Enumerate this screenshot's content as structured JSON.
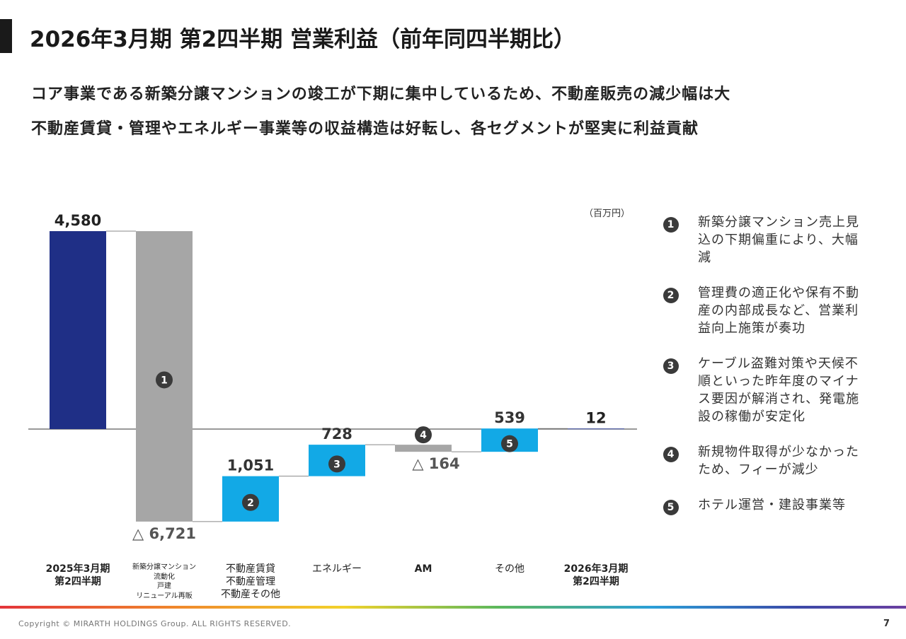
{
  "header": {
    "title": "2026年3月期 第2四半期 営業利益（前年同四半期比）",
    "subtitle_line1": "コア事業である新築分譲マンションの竣工が下期に集中しているため、不動産販売の減少幅は大",
    "subtitle_line2": "不動産賃貸・管理やエネルギー事業等の収益構造は好転し、各セグメントが堅実に利益貢献"
  },
  "chart_data": {
    "type": "bar",
    "subtype": "waterfall",
    "unit": "（百万円）",
    "categories": [
      [
        "2025年3月期",
        "第2四半期"
      ],
      [
        "新築分譲マンション",
        "流動化",
        "戸建",
        "リニューアル再販"
      ],
      [
        "不動産賃貸",
        "不動産管理",
        "不動産その他"
      ],
      [
        "エネルギー"
      ],
      [
        "AM"
      ],
      [
        "その他"
      ],
      [
        "2026年3月期",
        "第2四半期"
      ]
    ],
    "values": [
      4580,
      -6721,
      1051,
      728,
      -164,
      539,
      12
    ],
    "value_labels": [
      "4,580",
      "△ 6,721",
      "1,051",
      "728",
      "△ 164",
      "539",
      "12"
    ],
    "kinds": [
      "total",
      "delta",
      "delta",
      "delta",
      "delta",
      "delta",
      "total"
    ],
    "markers": [
      "",
      "1",
      "2",
      "3",
      "4",
      "5",
      ""
    ],
    "colors": {
      "total": "#1f2f86",
      "decrease": "#a6a6a6",
      "increase": "#12a9e6",
      "marker": "#3a3a3a"
    }
  },
  "notes": [
    {
      "num": "1",
      "text": "新築分譲マンション売上見込の下期偏重により、大幅減"
    },
    {
      "num": "2",
      "text": "管理費の適正化や保有不動産の内部成長など、営業利益向上施策が奏功"
    },
    {
      "num": "3",
      "text": "ケーブル盗難対策や天候不順といった昨年度のマイナス要因が解消され、発電施設の稼働が安定化"
    },
    {
      "num": "4",
      "text": "新規物件取得が少なかったため、フィーが減少"
    },
    {
      "num": "5",
      "text": "ホテル運営・建設事業等"
    }
  ],
  "footer": {
    "copyright": "Copyright © MIRARTH HOLDINGS Group. ALL RIGHTS RESERVED.",
    "page": "7"
  }
}
